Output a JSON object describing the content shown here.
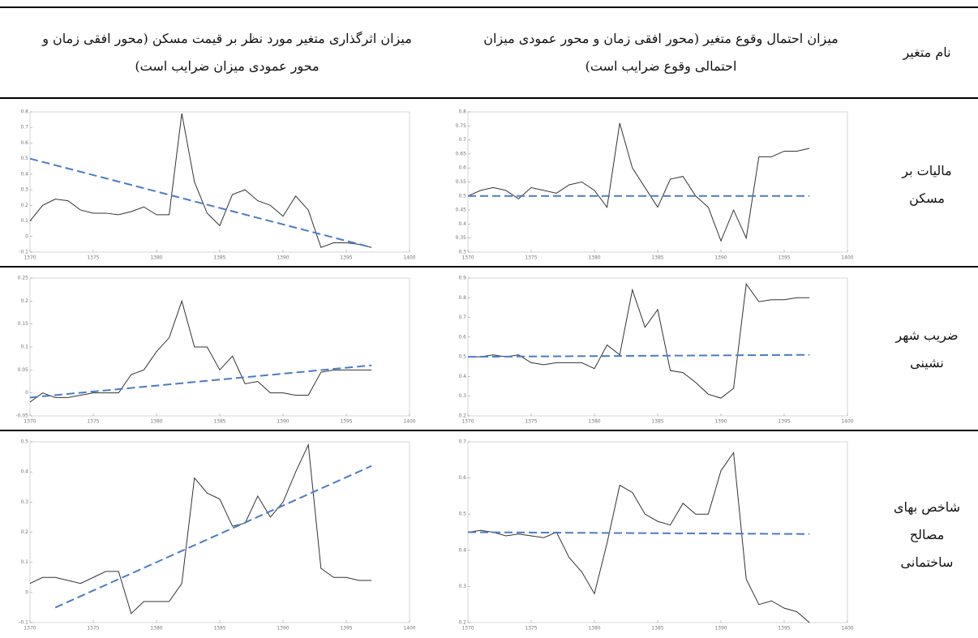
{
  "table": {
    "header": [
      "نام متغیر",
      "میزان احتمال وقوع متغیر (محور افقی زمان و محور عمودی میزان احتمالی وقوع ضرایب است)",
      "میزان اثرگذاری متغیر مورد نظر بر قیمت مسکن (محور افقی زمان و محور عمودی میزان ضرایب است)"
    ],
    "rows": [
      {
        "name": "مالیات بر مسکن",
        "probability_chart": {
          "type": "line",
          "x": [
            1370,
            1371,
            1372,
            1373,
            1374,
            1375,
            1376,
            1377,
            1378,
            1379,
            1380,
            1381,
            1382,
            1383,
            1384,
            1385,
            1386,
            1387,
            1388,
            1389,
            1390,
            1391,
            1392,
            1393,
            1394,
            1395,
            1396,
            1397
          ],
          "xlim": [
            1370,
            1400
          ],
          "xticks": [
            1370,
            1375,
            1380,
            1385,
            1390,
            1395,
            1400
          ],
          "ylim": [
            0.3,
            0.8
          ],
          "yticks": [
            0.3,
            0.35,
            0.4,
            0.45,
            0.5,
            0.55,
            0.6,
            0.65,
            0.7,
            0.75,
            0.8
          ],
          "series": [
            {
              "color": "#333333",
              "values": [
                0.5,
                0.52,
                0.53,
                0.52,
                0.49,
                0.53,
                0.52,
                0.51,
                0.54,
                0.55,
                0.52,
                0.46,
                0.76,
                0.6,
                0.53,
                0.46,
                0.56,
                0.57,
                0.5,
                0.46,
                0.34,
                0.45,
                0.35,
                0.64,
                0.64,
                0.66,
                0.66,
                0.67
              ]
            }
          ],
          "trend": {
            "color": "#4a7cc7",
            "x": [
              1370,
              1397
            ],
            "values": [
              0.5,
              0.5
            ]
          }
        },
        "impact_chart": {
          "type": "line",
          "x": [
            1370,
            1371,
            1372,
            1373,
            1374,
            1375,
            1376,
            1377,
            1378,
            1379,
            1380,
            1381,
            1382,
            1383,
            1384,
            1385,
            1386,
            1387,
            1388,
            1389,
            1390,
            1391,
            1392,
            1393,
            1394,
            1395,
            1396,
            1397
          ],
          "xlim": [
            1370,
            1400
          ],
          "xticks": [
            1370,
            1375,
            1380,
            1385,
            1390,
            1395,
            1400
          ],
          "ylim": [
            -0.1,
            0.8
          ],
          "yticks": [
            -0.1,
            0,
            0.1,
            0.2,
            0.3,
            0.4,
            0.5,
            0.6,
            0.7,
            0.8
          ],
          "series": [
            {
              "color": "#333333",
              "values": [
                0.1,
                0.2,
                0.24,
                0.23,
                0.17,
                0.15,
                0.15,
                0.14,
                0.16,
                0.19,
                0.14,
                0.14,
                0.79,
                0.35,
                0.15,
                0.07,
                0.27,
                0.3,
                0.23,
                0.2,
                0.13,
                0.26,
                0.17,
                -0.07,
                -0.04,
                -0.04,
                -0.05,
                -0.07
              ]
            }
          ],
          "trend": {
            "color": "#4a7cc7",
            "x": [
              1370,
              1397
            ],
            "values": [
              0.5,
              -0.07
            ]
          }
        }
      },
      {
        "name": "ضریب شهر نشینی",
        "probability_chart": {
          "type": "line",
          "x": [
            1370,
            1371,
            1372,
            1373,
            1374,
            1375,
            1376,
            1377,
            1378,
            1379,
            1380,
            1381,
            1382,
            1383,
            1384,
            1385,
            1386,
            1387,
            1388,
            1389,
            1390,
            1391,
            1392,
            1393,
            1394,
            1395,
            1396,
            1397
          ],
          "xlim": [
            1370,
            1400
          ],
          "xticks": [
            1370,
            1375,
            1380,
            1385,
            1390,
            1395,
            1400
          ],
          "ylim": [
            0.2,
            0.9
          ],
          "yticks": [
            0.2,
            0.3,
            0.4,
            0.5,
            0.6,
            0.7,
            0.8,
            0.9
          ],
          "series": [
            {
              "color": "#333333",
              "values": [
                0.5,
                0.5,
                0.51,
                0.5,
                0.51,
                0.47,
                0.46,
                0.47,
                0.47,
                0.47,
                0.44,
                0.56,
                0.51,
                0.84,
                0.65,
                0.74,
                0.43,
                0.42,
                0.37,
                0.31,
                0.29,
                0.34,
                0.87,
                0.78,
                0.79,
                0.79,
                0.8,
                0.8
              ]
            }
          ],
          "trend": {
            "color": "#4a7cc7",
            "x": [
              1370,
              1397
            ],
            "values": [
              0.5,
              0.51
            ]
          }
        },
        "impact_chart": {
          "type": "line",
          "x": [
            1370,
            1371,
            1372,
            1373,
            1374,
            1375,
            1376,
            1377,
            1378,
            1379,
            1380,
            1381,
            1382,
            1383,
            1384,
            1385,
            1386,
            1387,
            1388,
            1389,
            1390,
            1391,
            1392,
            1393,
            1394,
            1395,
            1396,
            1397
          ],
          "xlim": [
            1370,
            1400
          ],
          "xticks": [
            1370,
            1375,
            1380,
            1385,
            1390,
            1395,
            1400
          ],
          "ylim": [
            -0.05,
            0.25
          ],
          "yticks": [
            -0.05,
            0,
            0.05,
            0.1,
            0.15,
            0.2,
            0.25
          ],
          "series": [
            {
              "color": "#333333",
              "values": [
                -0.02,
                0,
                -0.01,
                -0.01,
                -0.005,
                0,
                0,
                0,
                0.04,
                0.05,
                0.09,
                0.12,
                0.2,
                0.1,
                0.1,
                0.05,
                0.08,
                0.02,
                0.025,
                0,
                0,
                -0.005,
                -0.005,
                0.045,
                0.05,
                0.05,
                0.05,
                0.05
              ]
            }
          ],
          "trend": {
            "color": "#4a7cc7",
            "x": [
              1370,
              1397
            ],
            "values": [
              -0.01,
              0.06
            ]
          }
        }
      },
      {
        "name": "شاخص بهای مصالح ساختمانی",
        "probability_chart": {
          "type": "line",
          "x": [
            1370,
            1371,
            1372,
            1373,
            1374,
            1375,
            1376,
            1377,
            1378,
            1379,
            1380,
            1381,
            1382,
            1383,
            1384,
            1385,
            1386,
            1387,
            1388,
            1389,
            1390,
            1391,
            1392,
            1393,
            1394,
            1395,
            1396,
            1397
          ],
          "xlim": [
            1370,
            1400
          ],
          "xticks": [
            1370,
            1375,
            1380,
            1385,
            1390,
            1395,
            1400
          ],
          "ylim": [
            0.2,
            0.7
          ],
          "yticks": [
            0.2,
            0.3,
            0.4,
            0.5,
            0.6,
            0.7
          ],
          "series": [
            {
              "color": "#333333",
              "values": [
                0.45,
                0.455,
                0.45,
                0.44,
                0.445,
                0.44,
                0.435,
                0.45,
                0.38,
                0.34,
                0.28,
                0.42,
                0.58,
                0.56,
                0.5,
                0.48,
                0.47,
                0.53,
                0.5,
                0.5,
                0.62,
                0.67,
                0.32,
                0.25,
                0.26,
                0.24,
                0.23,
                0.2
              ]
            }
          ],
          "trend": {
            "color": "#4a7cc7",
            "x": [
              1370,
              1397
            ],
            "values": [
              0.45,
              0.445
            ]
          }
        },
        "impact_chart": {
          "type": "line",
          "x": [
            1370,
            1371,
            1372,
            1373,
            1374,
            1375,
            1376,
            1377,
            1378,
            1379,
            1380,
            1381,
            1382,
            1383,
            1384,
            1385,
            1386,
            1387,
            1388,
            1389,
            1390,
            1391,
            1392,
            1393,
            1394,
            1395,
            1396,
            1397
          ],
          "xlim": [
            1370,
            1400
          ],
          "xticks": [
            1370,
            1375,
            1380,
            1385,
            1390,
            1395,
            1400
          ],
          "ylim": [
            -0.1,
            0.5
          ],
          "yticks": [
            -0.1,
            0,
            0.1,
            0.2,
            0.3,
            0.4,
            0.5
          ],
          "series": [
            {
              "color": "#333333",
              "values": [
                0.03,
                0.05,
                0.05,
                0.04,
                0.03,
                0.05,
                0.07,
                0.07,
                -0.07,
                -0.03,
                -0.03,
                -0.03,
                0.03,
                0.38,
                0.33,
                0.31,
                0.22,
                0.23,
                0.32,
                0.25,
                0.3,
                0.4,
                0.49,
                0.08,
                0.05,
                0.05,
                0.04,
                0.04
              ]
            }
          ],
          "trend": {
            "color": "#4a7cc7",
            "x": [
              1372,
              1397
            ],
            "values": [
              -0.05,
              0.42
            ]
          }
        }
      }
    ]
  }
}
